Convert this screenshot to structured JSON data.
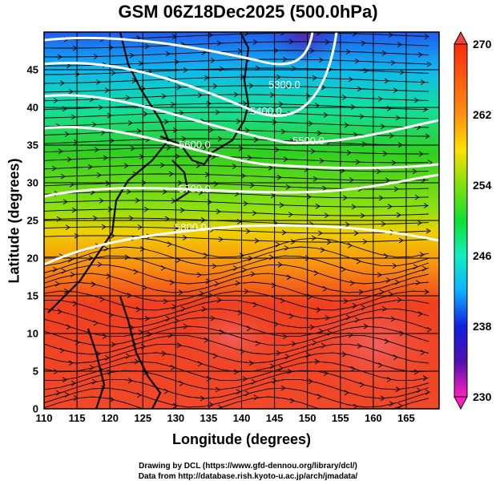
{
  "title": "GSM 06Z18Dec2025 (500.0hPa)",
  "xlabel": "Longitude (degrees)",
  "ylabel": "Latitude  (degrees)",
  "x_ticks": [
    "110",
    "115",
    "120",
    "125",
    "130",
    "135",
    "140",
    "145",
    "150",
    "155",
    "160",
    "165"
  ],
  "y_ticks": [
    "0",
    "5",
    "10",
    "15",
    "20",
    "25",
    "30",
    "35",
    "40",
    "45"
  ],
  "colorbar_ticks": [
    "270",
    "262",
    "254",
    "246",
    "238",
    "230"
  ],
  "contour_labels": [
    "5300.0",
    "5400.0",
    "5500.0",
    "5600.0",
    "5700.0",
    "5800.0"
  ],
  "credits": [
    "Drawing by DCL (https://www.gfd-dennou.org/library/dcl/)",
    "Data from http://database.rish.kyoto-u.ac.jp/arch/jmadata/"
  ],
  "chart_data": {
    "type": "heatmap",
    "title": "GSM 06Z18Dec2025 (500.0hPa)",
    "xlabel": "Longitude (degrees)",
    "ylabel": "Latitude  (degrees)",
    "xlim": [
      110,
      170
    ],
    "ylim": [
      0,
      50
    ],
    "colorbar": {
      "range": [
        230,
        270
      ],
      "ticks": [
        270,
        262,
        254,
        246,
        238,
        230
      ]
    },
    "contours": [
      5300,
      5400,
      5500,
      5600,
      5700,
      5800
    ]
  }
}
